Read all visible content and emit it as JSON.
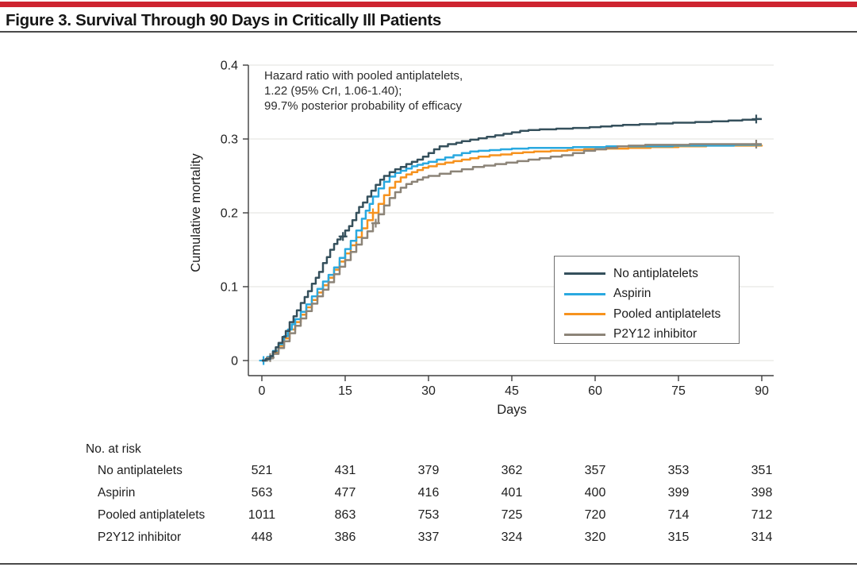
{
  "figure": {
    "title": "Figure 3. Survival Through 90 Days in Critically Ill Patients",
    "accent_bar_color": "#CE2430",
    "rule_color": "#4A4A4A"
  },
  "chart_data": {
    "type": "line",
    "step": true,
    "title": "",
    "xlabel": "Days",
    "ylabel": "Cumulative mortality",
    "xlim": [
      0,
      90
    ],
    "ylim": [
      0,
      0.4
    ],
    "xticks": [
      0,
      15,
      30,
      45,
      60,
      75,
      90
    ],
    "yticks": [
      0,
      0.1,
      0.2,
      0.3,
      0.4
    ],
    "ytick_labels": [
      "0",
      "0.1",
      "0.2",
      "0.3",
      "0.4"
    ],
    "grid": true,
    "grid_color": "#E7E6E3",
    "axis_color": "#3E3E3E",
    "tick_text_color": "#222222",
    "legend_position": "inside right",
    "annotation": {
      "lines": [
        "Hazard ratio with pooled antiplatelets,",
        "1.22 (95% CrI, 1.06-1.40);",
        "99.7% posterior probability of efficacy"
      ]
    },
    "series": [
      {
        "name": "No antiplatelets",
        "color": "#35505C",
        "z": 4,
        "points": [
          [
            0,
            0
          ],
          [
            0.7,
            0.002
          ],
          [
            1.5,
            0.006
          ],
          [
            2,
            0.012
          ],
          [
            2.5,
            0.018
          ],
          [
            3,
            0.024
          ],
          [
            3.7,
            0.032
          ],
          [
            4.3,
            0.04
          ],
          [
            5,
            0.052
          ],
          [
            5.7,
            0.06
          ],
          [
            6.3,
            0.068
          ],
          [
            7,
            0.078
          ],
          [
            7.7,
            0.086
          ],
          [
            8.3,
            0.094
          ],
          [
            9,
            0.104
          ],
          [
            9.7,
            0.112
          ],
          [
            10.3,
            0.12
          ],
          [
            11,
            0.132
          ],
          [
            11.7,
            0.14
          ],
          [
            12.3,
            0.15
          ],
          [
            13,
            0.158
          ],
          [
            13.6,
            0.164
          ],
          [
            14.2,
            0.168
          ],
          [
            15,
            0.176
          ],
          [
            15.7,
            0.182
          ],
          [
            16.3,
            0.19
          ],
          [
            17,
            0.2
          ],
          [
            17.5,
            0.208
          ],
          [
            18.2,
            0.214
          ],
          [
            19,
            0.222
          ],
          [
            19.7,
            0.23
          ],
          [
            20.5,
            0.238
          ],
          [
            21.3,
            0.245
          ],
          [
            22,
            0.25
          ],
          [
            23,
            0.255
          ],
          [
            24,
            0.259
          ],
          [
            25,
            0.262
          ],
          [
            26,
            0.266
          ],
          [
            27,
            0.269
          ],
          [
            28,
            0.272
          ],
          [
            29,
            0.276
          ],
          [
            30,
            0.281
          ],
          [
            31,
            0.286
          ],
          [
            32,
            0.29
          ],
          [
            33.5,
            0.293
          ],
          [
            35,
            0.295
          ],
          [
            36,
            0.297
          ],
          [
            37.5,
            0.299
          ],
          [
            39,
            0.301
          ],
          [
            40.5,
            0.303
          ],
          [
            42,
            0.305
          ],
          [
            43.5,
            0.307
          ],
          [
            45,
            0.309
          ],
          [
            46.5,
            0.311
          ],
          [
            48,
            0.312
          ],
          [
            50,
            0.313
          ],
          [
            53,
            0.314
          ],
          [
            56,
            0.315
          ],
          [
            59,
            0.316
          ],
          [
            61,
            0.317
          ],
          [
            63,
            0.318
          ],
          [
            65,
            0.319
          ],
          [
            68,
            0.32
          ],
          [
            71,
            0.321
          ],
          [
            74,
            0.322
          ],
          [
            78,
            0.323
          ],
          [
            81,
            0.324
          ],
          [
            84,
            0.325
          ],
          [
            86.5,
            0.326
          ],
          [
            89,
            0.327
          ],
          [
            90,
            0.327
          ]
        ],
        "censor_marks": [
          [
            14.6,
            0.168
          ],
          [
            89,
            0.327
          ]
        ]
      },
      {
        "name": "Aspirin",
        "color": "#2AA9E0",
        "z": 2,
        "points": [
          [
            0,
            0
          ],
          [
            1,
            0.005
          ],
          [
            2,
            0.013
          ],
          [
            3,
            0.022
          ],
          [
            4,
            0.033
          ],
          [
            4.7,
            0.042
          ],
          [
            5.4,
            0.049
          ],
          [
            6,
            0.056
          ],
          [
            7,
            0.066
          ],
          [
            8,
            0.076
          ],
          [
            9,
            0.087
          ],
          [
            10,
            0.097
          ],
          [
            11,
            0.107
          ],
          [
            12,
            0.116
          ],
          [
            13,
            0.126
          ],
          [
            14,
            0.139
          ],
          [
            15,
            0.151
          ],
          [
            16,
            0.162
          ],
          [
            17,
            0.176
          ],
          [
            18,
            0.192
          ],
          [
            18.7,
            0.203
          ],
          [
            19.4,
            0.212
          ],
          [
            20,
            0.222
          ],
          [
            21,
            0.233
          ],
          [
            22,
            0.242
          ],
          [
            23,
            0.249
          ],
          [
            24,
            0.254
          ],
          [
            25,
            0.257
          ],
          [
            26,
            0.26
          ],
          [
            27,
            0.263
          ],
          [
            28,
            0.265
          ],
          [
            29,
            0.267
          ],
          [
            30,
            0.269
          ],
          [
            31.5,
            0.272
          ],
          [
            33,
            0.275
          ],
          [
            34.5,
            0.278
          ],
          [
            36,
            0.281
          ],
          [
            37.5,
            0.283
          ],
          [
            39,
            0.284
          ],
          [
            41,
            0.285
          ],
          [
            43,
            0.286
          ],
          [
            45,
            0.287
          ],
          [
            48,
            0.288
          ],
          [
            52,
            0.288
          ],
          [
            56,
            0.289
          ],
          [
            62,
            0.29
          ],
          [
            68,
            0.29
          ],
          [
            74,
            0.291
          ],
          [
            80,
            0.291
          ],
          [
            85,
            0.292
          ],
          [
            90,
            0.292
          ]
        ],
        "censor_marks": [
          [
            0.3,
            0
          ]
        ]
      },
      {
        "name": "Pooled antiplatelets",
        "color": "#F6921E",
        "z": 1,
        "points": [
          [
            0,
            0
          ],
          [
            1,
            0.004
          ],
          [
            2,
            0.011
          ],
          [
            3,
            0.02
          ],
          [
            4,
            0.03
          ],
          [
            5,
            0.042
          ],
          [
            6,
            0.052
          ],
          [
            7,
            0.062
          ],
          [
            8,
            0.072
          ],
          [
            9,
            0.082
          ],
          [
            10,
            0.092
          ],
          [
            11,
            0.102
          ],
          [
            12,
            0.112
          ],
          [
            13,
            0.123
          ],
          [
            14,
            0.134
          ],
          [
            15,
            0.145
          ],
          [
            16,
            0.156
          ],
          [
            17,
            0.167
          ],
          [
            18,
            0.179
          ],
          [
            19,
            0.19
          ],
          [
            20,
            0.2
          ],
          [
            21,
            0.212
          ],
          [
            22,
            0.224
          ],
          [
            23,
            0.234
          ],
          [
            24,
            0.242
          ],
          [
            25,
            0.248
          ],
          [
            26,
            0.252
          ],
          [
            27,
            0.255
          ],
          [
            28,
            0.258
          ],
          [
            29,
            0.261
          ],
          [
            30,
            0.263
          ],
          [
            31.5,
            0.266
          ],
          [
            33,
            0.268
          ],
          [
            34.5,
            0.27
          ],
          [
            36,
            0.272
          ],
          [
            37.5,
            0.274
          ],
          [
            39,
            0.276
          ],
          [
            41,
            0.278
          ],
          [
            43,
            0.279
          ],
          [
            45,
            0.281
          ],
          [
            47,
            0.282
          ],
          [
            49,
            0.283
          ],
          [
            52,
            0.284
          ],
          [
            55,
            0.285
          ],
          [
            58,
            0.286
          ],
          [
            62,
            0.287
          ],
          [
            66,
            0.288
          ],
          [
            70,
            0.289
          ],
          [
            75,
            0.29
          ],
          [
            80,
            0.291
          ],
          [
            85,
            0.291
          ],
          [
            90,
            0.292
          ]
        ],
        "censor_marks": [
          [
            20,
            0.2
          ]
        ]
      },
      {
        "name": "P2Y12 inhibitor",
        "color": "#8C8478",
        "z": 3,
        "points": [
          [
            0,
            0
          ],
          [
            1,
            0.003
          ],
          [
            2,
            0.009
          ],
          [
            3,
            0.017
          ],
          [
            4,
            0.026
          ],
          [
            5,
            0.037
          ],
          [
            6,
            0.047
          ],
          [
            7,
            0.057
          ],
          [
            8,
            0.067
          ],
          [
            9,
            0.077
          ],
          [
            10,
            0.087
          ],
          [
            11,
            0.096
          ],
          [
            12,
            0.106
          ],
          [
            13,
            0.117
          ],
          [
            14,
            0.127
          ],
          [
            15,
            0.136
          ],
          [
            16,
            0.147
          ],
          [
            17,
            0.157
          ],
          [
            18,
            0.166
          ],
          [
            19,
            0.175
          ],
          [
            20,
            0.186
          ],
          [
            21,
            0.198
          ],
          [
            22,
            0.21
          ],
          [
            23,
            0.22
          ],
          [
            24,
            0.228
          ],
          [
            25,
            0.234
          ],
          [
            26,
            0.239
          ],
          [
            27,
            0.242
          ],
          [
            28,
            0.245
          ],
          [
            29,
            0.248
          ],
          [
            30,
            0.25
          ],
          [
            32,
            0.253
          ],
          [
            34,
            0.256
          ],
          [
            36,
            0.259
          ],
          [
            38,
            0.262
          ],
          [
            40,
            0.264
          ],
          [
            42,
            0.266
          ],
          [
            44,
            0.268
          ],
          [
            46,
            0.27
          ],
          [
            48,
            0.272
          ],
          [
            50,
            0.274
          ],
          [
            52,
            0.276
          ],
          [
            54,
            0.278
          ],
          [
            56,
            0.281
          ],
          [
            58,
            0.284
          ],
          [
            60,
            0.286
          ],
          [
            62,
            0.288
          ],
          [
            64,
            0.29
          ],
          [
            66,
            0.291
          ],
          [
            69,
            0.292
          ],
          [
            73,
            0.292
          ],
          [
            77,
            0.293
          ],
          [
            82,
            0.293
          ],
          [
            86,
            0.293
          ],
          [
            90,
            0.293
          ]
        ],
        "censor_marks": [
          [
            1.5,
            0.004
          ],
          [
            20.5,
            0.186
          ],
          [
            89,
            0.293
          ]
        ]
      }
    ],
    "at_risk": {
      "header": "No. at risk",
      "timepoints": [
        0,
        15,
        30,
        45,
        60,
        75,
        90
      ],
      "rows": [
        {
          "label": "No antiplatelets",
          "values": [
            "521",
            "431",
            "379",
            "362",
            "357",
            "353",
            "351"
          ]
        },
        {
          "label": "Aspirin",
          "values": [
            "563",
            "477",
            "416",
            "401",
            "400",
            "399",
            "398"
          ]
        },
        {
          "label": "Pooled antiplatelets",
          "values": [
            "1011",
            "863",
            "753",
            "725",
            "720",
            "714",
            "712"
          ]
        },
        {
          "label": "P2Y12 inhibitor",
          "values": [
            "448",
            "386",
            "337",
            "324",
            "320",
            "315",
            "314"
          ]
        }
      ]
    }
  }
}
